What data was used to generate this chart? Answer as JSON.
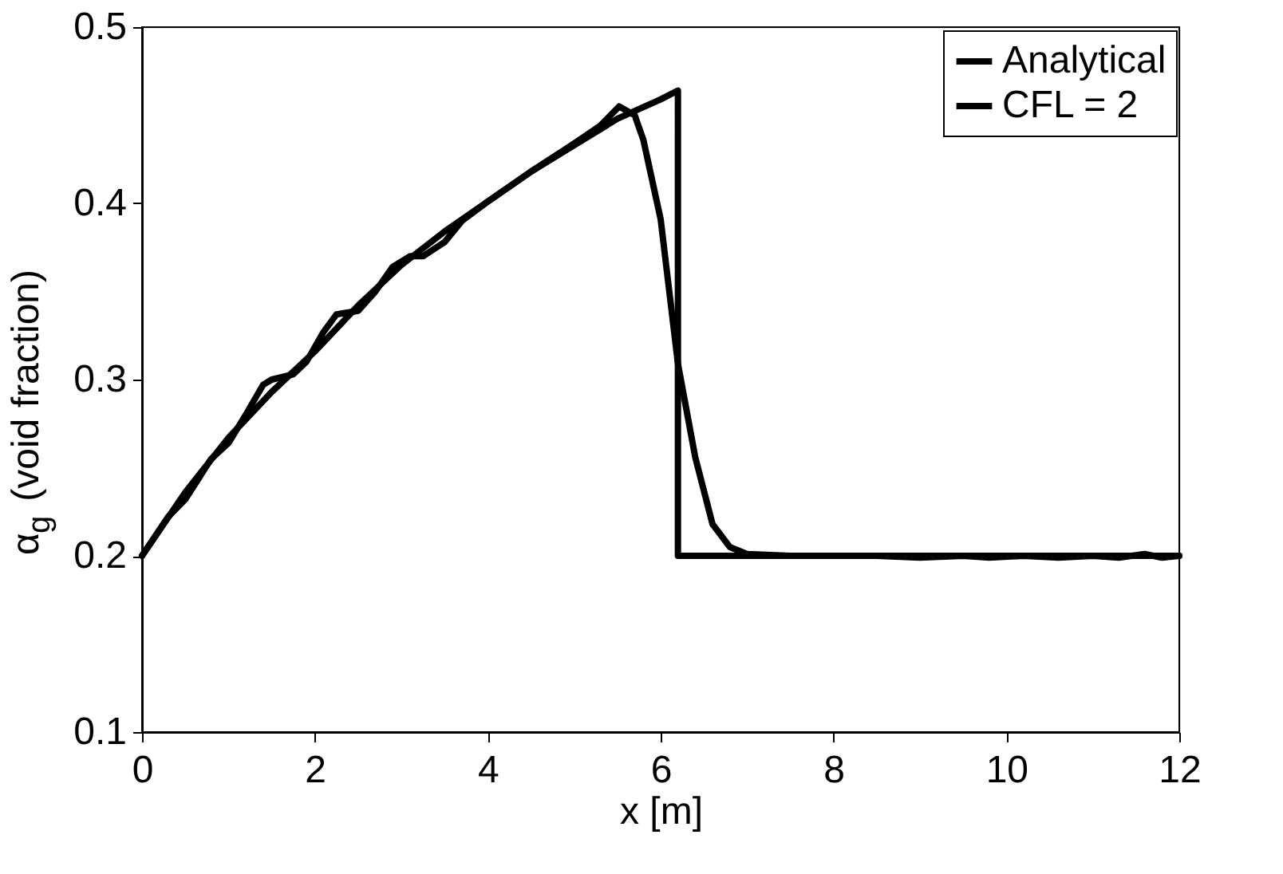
{
  "chart_data": {
    "type": "line",
    "xlabel": "x [m]",
    "ylabel": "α$_{g}$ (void fraction)",
    "xlim": [
      0,
      12
    ],
    "ylim": [
      0.1,
      0.5
    ],
    "xticks": [
      0,
      2,
      4,
      6,
      8,
      10,
      12
    ],
    "yticks": [
      0.1,
      0.2,
      0.3,
      0.4,
      0.5
    ],
    "grid": false,
    "legend": "top right",
    "marker": "none",
    "line_style": "solid",
    "series": [
      {
        "name": "Analytical",
        "color": "#000000",
        "x": [
          0,
          0.5,
          1,
          1.5,
          2,
          2.5,
          3,
          3.5,
          4,
          4.5,
          5,
          5.5,
          6,
          6.2,
          6.2,
          12
        ],
        "values": [
          0.2,
          0.236,
          0.267,
          0.293,
          0.316,
          0.342,
          0.365,
          0.384,
          0.401,
          0.418,
          0.433,
          0.448,
          0.459,
          0.464,
          0.2,
          0.2
        ]
      },
      {
        "name": "CFL = 2",
        "color": "#000000",
        "x": [
          0,
          0.3,
          0.5,
          0.8,
          1.0,
          1.2,
          1.4,
          1.5,
          1.75,
          1.9,
          2.1,
          2.25,
          2.5,
          2.7,
          2.9,
          3.1,
          3.25,
          3.5,
          3.7,
          4.0,
          4.5,
          5.0,
          5.3,
          5.52,
          5.7,
          5.8,
          6.0,
          6.2,
          6.4,
          6.6,
          6.8,
          7.0,
          7.5,
          8.0,
          8.5,
          9.0,
          9.5,
          9.8,
          10.2,
          10.6,
          11.0,
          11.3,
          11.6,
          11.8,
          12
        ],
        "values": [
          0.2,
          0.222,
          0.232,
          0.255,
          0.264,
          0.28,
          0.297,
          0.3,
          0.303,
          0.31,
          0.327,
          0.337,
          0.339,
          0.35,
          0.364,
          0.37,
          0.37,
          0.378,
          0.39,
          0.401,
          0.418,
          0.434,
          0.444,
          0.455,
          0.45,
          0.436,
          0.391,
          0.309,
          0.256,
          0.218,
          0.205,
          0.201,
          0.2,
          0.2,
          0.2,
          0.199,
          0.2,
          0.199,
          0.2,
          0.199,
          0.2,
          0.199,
          0.201,
          0.199,
          0.2
        ]
      }
    ]
  }
}
